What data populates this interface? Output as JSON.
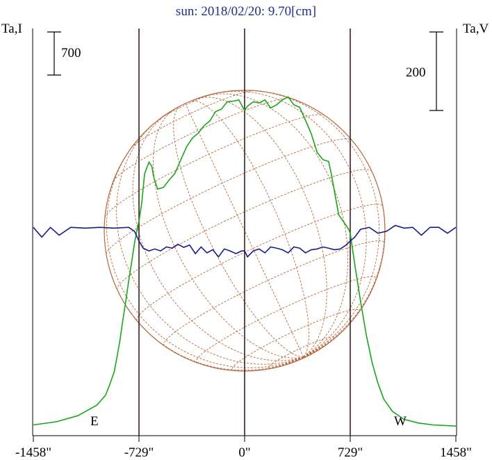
{
  "chart_data": {
    "type": "line",
    "title": "sun: 2018/02/20: 9.70[cm]",
    "left_axis_label": "Ta,I",
    "right_axis_label": "Ta,V",
    "left_scale_bar": "700",
    "right_scale_bar": "200",
    "x_tick_values": [
      -1458,
      -729,
      0,
      729,
      1458
    ],
    "x_tick_labels": [
      "-1458\"",
      "-729\"",
      "0\"",
      "729\"",
      "1458\""
    ],
    "xlim": [
      -1458,
      1458
    ],
    "limb_labels": {
      "east": "E",
      "west": "W"
    },
    "limb_positions": [
      -729,
      0,
      729
    ],
    "grid": false,
    "series": [
      {
        "color": "#1aa51a",
        "x": [
          -1458,
          -1300,
          -1150,
          -1020,
          -960,
          -930,
          -900,
          -880,
          -860,
          -840,
          -820,
          -800,
          -780,
          -760,
          -740,
          -729,
          -710,
          -690,
          -660,
          -640,
          -630,
          -620,
          -600,
          -560,
          -520,
          -480,
          -440,
          -400,
          -360,
          -320,
          -280,
          -240,
          -200,
          -160,
          -120,
          -80,
          -40,
          -10,
          0,
          20,
          60,
          100,
          140,
          180,
          220,
          260,
          300,
          340,
          380,
          420,
          460,
          500,
          540,
          580,
          600,
          630,
          650,
          680,
          700,
          720,
          729,
          760,
          800,
          840,
          880,
          920,
          960,
          1020,
          1100,
          1200,
          1300,
          1458
        ],
        "y": [
          40,
          90,
          190,
          360,
          520,
          700,
          900,
          1150,
          1420,
          1750,
          2050,
          2380,
          2680,
          2990,
          3240,
          3350,
          3650,
          4120,
          4310,
          4240,
          4100,
          4010,
          3870,
          3900,
          4020,
          4130,
          4350,
          4560,
          4700,
          4780,
          4900,
          4980,
          5130,
          5170,
          5290,
          5300,
          5320,
          5190,
          5150,
          5220,
          5290,
          5270,
          5320,
          5190,
          5240,
          5320,
          5370,
          5240,
          5200,
          4990,
          4770,
          4470,
          4350,
          4320,
          4100,
          3700,
          3450,
          3350,
          3280,
          3210,
          3150,
          2650,
          2050,
          1500,
          1050,
          720,
          460,
          260,
          130,
          70,
          40,
          20
        ]
      },
      {
        "color": "#1a1a8c",
        "x": [
          -1458,
          -1400,
          -1340,
          -1280,
          -1200,
          -1100,
          -1000,
          -900,
          -800,
          -760,
          -729,
          -700,
          -660,
          -620,
          -580,
          -540,
          -500,
          -460,
          -420,
          -380,
          -340,
          -300,
          -260,
          -220,
          -180,
          -140,
          -100,
          -60,
          -20,
          0,
          20,
          60,
          100,
          140,
          180,
          220,
          260,
          300,
          340,
          380,
          420,
          460,
          500,
          540,
          580,
          620,
          660,
          700,
          729,
          760,
          800,
          860,
          920,
          980,
          1040,
          1100,
          1160,
          1220,
          1280,
          1340,
          1400,
          1458
        ],
        "y": [
          5,
          -20,
          5,
          -15,
          5,
          3,
          5,
          3,
          5,
          -5,
          -30,
          -48,
          -55,
          -50,
          -55,
          -45,
          -48,
          -38,
          -46,
          -40,
          -62,
          -45,
          -60,
          -52,
          -70,
          -50,
          -55,
          -62,
          -55,
          -55,
          -70,
          -55,
          -50,
          -60,
          -45,
          -48,
          -52,
          -60,
          -45,
          -48,
          -60,
          -52,
          -50,
          -45,
          -48,
          -52,
          -50,
          -40,
          -30,
          -20,
          0,
          5,
          -10,
          -5,
          10,
          3,
          5,
          -15,
          5,
          5,
          -10,
          5
        ]
      }
    ]
  }
}
